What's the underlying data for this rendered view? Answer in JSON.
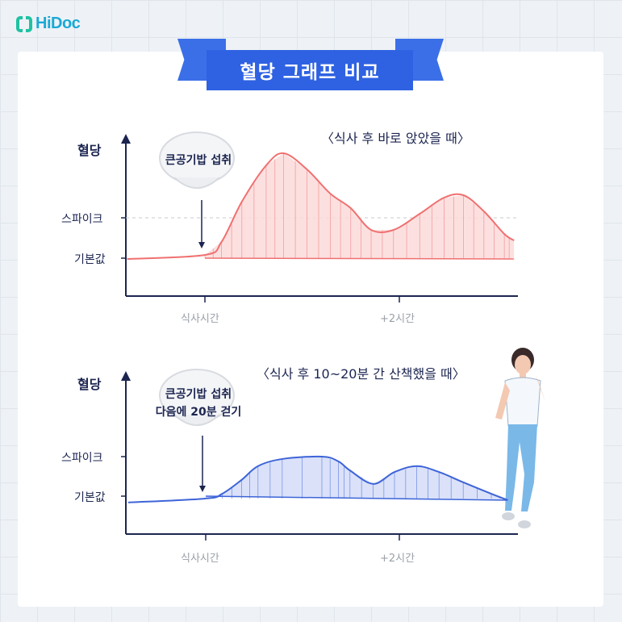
{
  "brand": {
    "name": "HiDoc",
    "color": "#1aa9d6"
  },
  "banner": {
    "title": "혈당 그래프 비교",
    "color": "#2e62e2"
  },
  "chart_data": [
    {
      "type": "area",
      "title": "〈식사 후 바로 앉았을 때〉",
      "ylabel": "혈당",
      "y_ticks": [
        {
          "label": "스파이크",
          "value": 1
        },
        {
          "label": "기본값",
          "value": 0
        }
      ],
      "x_ticks": [
        {
          "label": "식사시간",
          "value": 0
        },
        {
          "label": "+2시간",
          "value": 2
        }
      ],
      "x_unit": "hours after meal",
      "y_unit": "relative level (0 = baseline, 1 = spike threshold)",
      "annotation": "큰공기밥 섭취",
      "color": "#f07070",
      "fill": "#fcdada",
      "fill_start_x": 0,
      "x": [
        -0.8,
        0,
        0.17,
        0.38,
        0.63,
        0.81,
        1.05,
        1.29,
        1.5,
        1.71,
        1.94,
        2.21,
        2.46,
        2.66,
        2.87,
        3.08,
        3.18
      ],
      "y": [
        -0.02,
        0.08,
        0.4,
        1.4,
        2.3,
        2.6,
        2.2,
        1.6,
        1.24,
        0.7,
        0.7,
        1.1,
        1.5,
        1.56,
        1.16,
        0.6,
        0.44
      ]
    },
    {
      "type": "area",
      "title": "〈식사 후 10~20분 간 산책했을 때〉",
      "ylabel": "혈당",
      "y_ticks": [
        {
          "label": "스파이크",
          "value": 1
        },
        {
          "label": "기본값",
          "value": 0
        }
      ],
      "x_ticks": [
        {
          "label": "식사시간",
          "value": 0
        },
        {
          "label": "+2시간",
          "value": 2
        }
      ],
      "x_unit": "hours after meal",
      "y_unit": "relative level (0 = baseline, 1 = spike threshold)",
      "annotation_lines": [
        "큰공기밥 섭취",
        "다음에 20분 걷기"
      ],
      "color": "#3d64d8",
      "fill": "#d4dcf8",
      "fill_start_x": 0,
      "x": [
        -0.8,
        0,
        0.17,
        0.37,
        0.54,
        0.79,
        1.2,
        1.37,
        1.49,
        1.73,
        1.95,
        2.18,
        2.41,
        2.66,
        2.95,
        3.12
      ],
      "y": [
        -0.16,
        -0.06,
        0.06,
        0.41,
        0.76,
        0.94,
        1.0,
        0.88,
        0.65,
        0.31,
        0.61,
        0.76,
        0.61,
        0.35,
        0.06,
        -0.1
      ]
    }
  ]
}
